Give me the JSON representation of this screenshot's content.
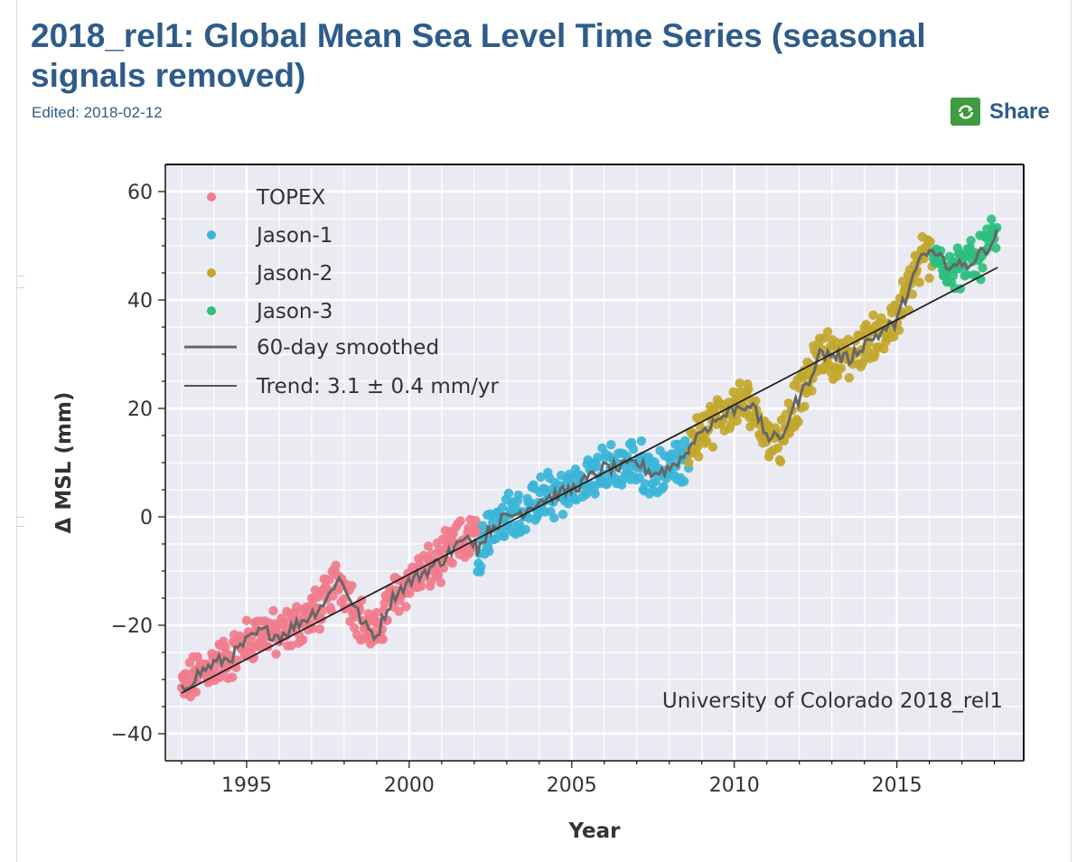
{
  "page": {
    "title": "2018_rel1: Global Mean Sea Level Time Series (seasonal signals removed)",
    "edited": "Edited: 2018-02-12",
    "share_label": "Share",
    "share_icon": "share-icon",
    "share_color": "#3f9b3f",
    "title_color": "#2e5c8a"
  },
  "chart_data": {
    "type": "scatter",
    "title": "",
    "xlabel": "Year",
    "ylabel": "Δ MSL (mm)",
    "xlim": [
      1992.5,
      2018.9
    ],
    "ylim": [
      -45,
      65
    ],
    "xticks": [
      1995,
      2000,
      2005,
      2010,
      2015
    ],
    "xtick_labels": [
      "1995",
      "2000",
      "2005",
      "2010",
      "2015"
    ],
    "yticks": [
      -40,
      -20,
      0,
      20,
      40,
      60
    ],
    "ytick_labels": [
      "−40",
      "−20",
      "0",
      "20",
      "40",
      "60"
    ],
    "grid": true,
    "legend_position": "top-left",
    "annotation": "University of Colorado 2018_rel1",
    "series": [
      {
        "name": "TOPEX",
        "kind": "points",
        "color": "#f07c8c",
        "x_start": 1993.0,
        "x_end": 2002.1,
        "anchors": [
          [
            1993.0,
            -32
          ],
          [
            1993.5,
            -29
          ],
          [
            1994.0,
            -27
          ],
          [
            1994.5,
            -26
          ],
          [
            1995.0,
            -23
          ],
          [
            1995.5,
            -21
          ],
          [
            1996.0,
            -22
          ],
          [
            1996.5,
            -20
          ],
          [
            1997.0,
            -18
          ],
          [
            1997.5,
            -15
          ],
          [
            1997.8,
            -11
          ],
          [
            1998.2,
            -15
          ],
          [
            1998.6,
            -20
          ],
          [
            1999.0,
            -22
          ],
          [
            1999.3,
            -17
          ],
          [
            1999.6,
            -14
          ],
          [
            2000.0,
            -12
          ],
          [
            2000.5,
            -10
          ],
          [
            2001.0,
            -8
          ],
          [
            2001.5,
            -5
          ],
          [
            2002.1,
            -4
          ]
        ]
      },
      {
        "name": "Jason-1",
        "kind": "points",
        "color": "#3bb5d8",
        "x_start": 2002.1,
        "x_end": 2008.6,
        "anchors": [
          [
            2002.1,
            -6
          ],
          [
            2002.5,
            -2
          ],
          [
            2003.0,
            0
          ],
          [
            2003.5,
            1
          ],
          [
            2004.0,
            3
          ],
          [
            2004.5,
            4
          ],
          [
            2005.0,
            5
          ],
          [
            2005.5,
            7
          ],
          [
            2006.0,
            9
          ],
          [
            2006.5,
            9
          ],
          [
            2007.0,
            10
          ],
          [
            2007.5,
            8
          ],
          [
            2008.0,
            9
          ],
          [
            2008.6,
            12
          ]
        ]
      },
      {
        "name": "Jason-2",
        "kind": "points",
        "color": "#c2a72e",
        "x_start": 2008.6,
        "x_end": 2016.1,
        "anchors": [
          [
            2008.6,
            13
          ],
          [
            2009.0,
            16
          ],
          [
            2009.5,
            18
          ],
          [
            2010.0,
            20
          ],
          [
            2010.5,
            21
          ],
          [
            2011.0,
            15
          ],
          [
            2011.4,
            14
          ],
          [
            2011.8,
            20
          ],
          [
            2012.2,
            24
          ],
          [
            2012.6,
            30
          ],
          [
            2013.0,
            30
          ],
          [
            2013.5,
            29
          ],
          [
            2014.0,
            32
          ],
          [
            2014.5,
            34
          ],
          [
            2015.0,
            36
          ],
          [
            2015.4,
            43
          ],
          [
            2015.8,
            48
          ],
          [
            2016.1,
            49
          ]
        ]
      },
      {
        "name": "Jason-3",
        "kind": "points",
        "color": "#2dbf7f",
        "x_start": 2016.1,
        "x_end": 2018.1,
        "anchors": [
          [
            2016.1,
            48
          ],
          [
            2016.5,
            47
          ],
          [
            2017.0,
            46
          ],
          [
            2017.5,
            48
          ],
          [
            2018.1,
            52
          ]
        ]
      },
      {
        "name": "60-day smoothed",
        "kind": "line",
        "color": "#666666"
      },
      {
        "name": "Trend: 3.1 ± 0.4 mm/yr",
        "kind": "line",
        "color": "#222222",
        "points": [
          [
            1993.0,
            -32.5
          ],
          [
            2018.1,
            46
          ]
        ]
      }
    ]
  }
}
